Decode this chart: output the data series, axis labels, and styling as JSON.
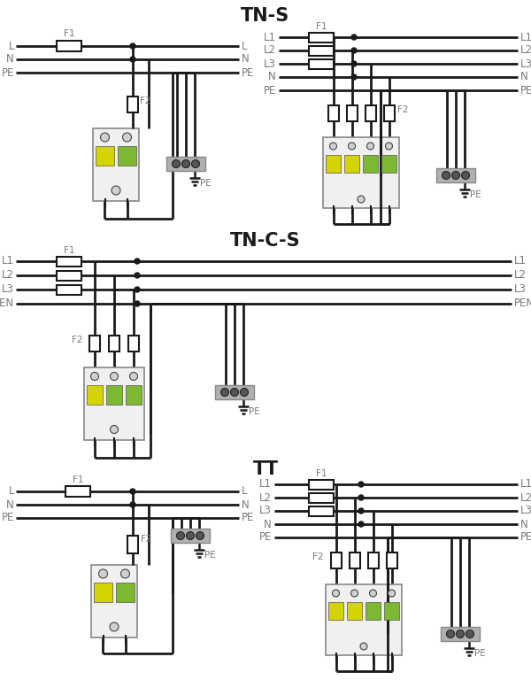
{
  "title_tns": "TN-S",
  "title_tncs": "TN-C-S",
  "title_tt": "TT",
  "bg_color": "#ffffff",
  "line_color": "#1a1a1a",
  "label_color": "#7a7a7a",
  "yellow_color": "#d4d400",
  "green_color": "#7db832",
  "fuse_fill": "#ffffff",
  "spd_fill": "#f2f2f2",
  "spd_stroke": "#888888",
  "term_fill": "#999999",
  "term_stroke": "#555555"
}
